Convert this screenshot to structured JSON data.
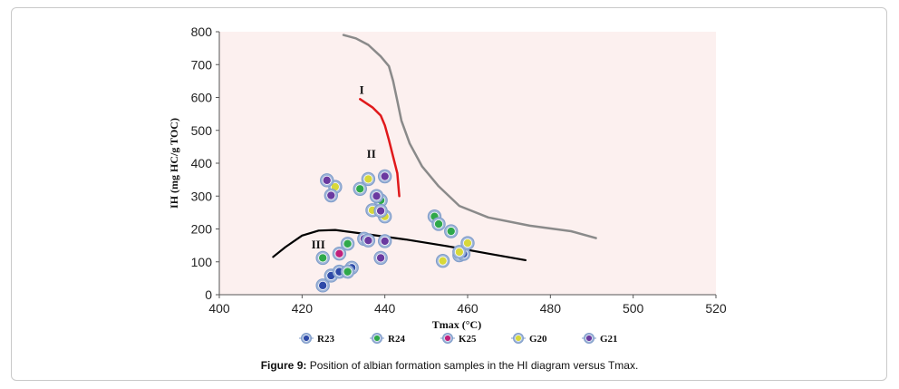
{
  "caption": {
    "label": "Figure 9:",
    "text": " Position of albian formation samples in the HI diagram versus Tmax."
  },
  "colors": {
    "plot_background": "#fcf0ef",
    "curve_I": "#8a8a8a",
    "curve_II": "#e0191b",
    "curve_III": "#000000"
  },
  "chart_data": {
    "type": "scatter",
    "xlabel": "Tmax (°C)",
    "ylabel": "IH (mg HC/g TOC)",
    "xlim": [
      400,
      520
    ],
    "ylim": [
      0,
      800
    ],
    "x_ticks": [
      "400",
      "420",
      "440",
      "460",
      "480",
      "500",
      "520"
    ],
    "y_ticks": [
      "0",
      "100",
      "200",
      "300",
      "400",
      "500",
      "600",
      "700",
      "800"
    ],
    "grid": false,
    "legend_position": "bottom",
    "series": [
      {
        "name": "R23",
        "color": "#2e4aa8",
        "points": [
          [
            425,
            28
          ],
          [
            427,
            58
          ],
          [
            429,
            70
          ],
          [
            432,
            82
          ],
          [
            458,
            120
          ],
          [
            459,
            124
          ]
        ]
      },
      {
        "name": "R24",
        "color": "#2fa84a",
        "points": [
          [
            425,
            112
          ],
          [
            431,
            155
          ],
          [
            431,
            70
          ],
          [
            434,
            322
          ],
          [
            439,
            287
          ],
          [
            452,
            238
          ],
          [
            453,
            215
          ],
          [
            456,
            193
          ]
        ]
      },
      {
        "name": "K25",
        "color": "#c0207a",
        "points": [
          [
            429,
            125
          ]
        ]
      },
      {
        "name": "G20",
        "color": "#d8d83a",
        "points": [
          [
            428,
            328
          ],
          [
            436,
            352
          ],
          [
            437,
            257
          ],
          [
            440,
            238
          ],
          [
            454,
            103
          ],
          [
            458,
            130
          ],
          [
            460,
            157
          ]
        ]
      },
      {
        "name": "G21",
        "color": "#6a3aa0",
        "points": [
          [
            426,
            348
          ],
          [
            427,
            302
          ],
          [
            435,
            170
          ],
          [
            436,
            165
          ],
          [
            438,
            300
          ],
          [
            439,
            112
          ],
          [
            439,
            255
          ],
          [
            440,
            360
          ],
          [
            440,
            163
          ]
        ]
      }
    ],
    "curves": [
      {
        "label": "I",
        "color": "#8a8a8a",
        "points": [
          [
            430,
            790
          ],
          [
            433,
            780
          ],
          [
            436,
            760
          ],
          [
            439,
            725
          ],
          [
            441,
            695
          ],
          [
            442,
            650
          ],
          [
            443,
            590
          ],
          [
            444,
            530
          ],
          [
            446,
            460
          ],
          [
            449,
            390
          ],
          [
            453,
            330
          ],
          [
            458,
            270
          ],
          [
            465,
            235
          ],
          [
            475,
            210
          ],
          [
            485,
            193
          ],
          [
            491,
            172
          ]
        ]
      },
      {
        "label": "II",
        "color": "#e0191b",
        "points": [
          [
            434,
            595
          ],
          [
            437,
            570
          ],
          [
            439,
            545
          ],
          [
            440,
            515
          ],
          [
            441,
            470
          ],
          [
            442,
            420
          ],
          [
            443,
            370
          ],
          [
            443.5,
            300
          ]
        ]
      },
      {
        "label": "III",
        "color": "#000000",
        "points": [
          [
            413,
            115
          ],
          [
            416,
            145
          ],
          [
            420,
            180
          ],
          [
            424,
            195
          ],
          [
            428,
            197
          ],
          [
            435,
            185
          ],
          [
            445,
            168
          ],
          [
            455,
            148
          ],
          [
            465,
            125
          ],
          [
            474,
            105
          ]
        ]
      }
    ],
    "region_labels": [
      {
        "text": "I",
        "x": 440,
        "y": 625
      },
      {
        "text": "II",
        "x": 440,
        "y": 430
      },
      {
        "text": "III",
        "x": 424,
        "y": 155
      }
    ]
  }
}
